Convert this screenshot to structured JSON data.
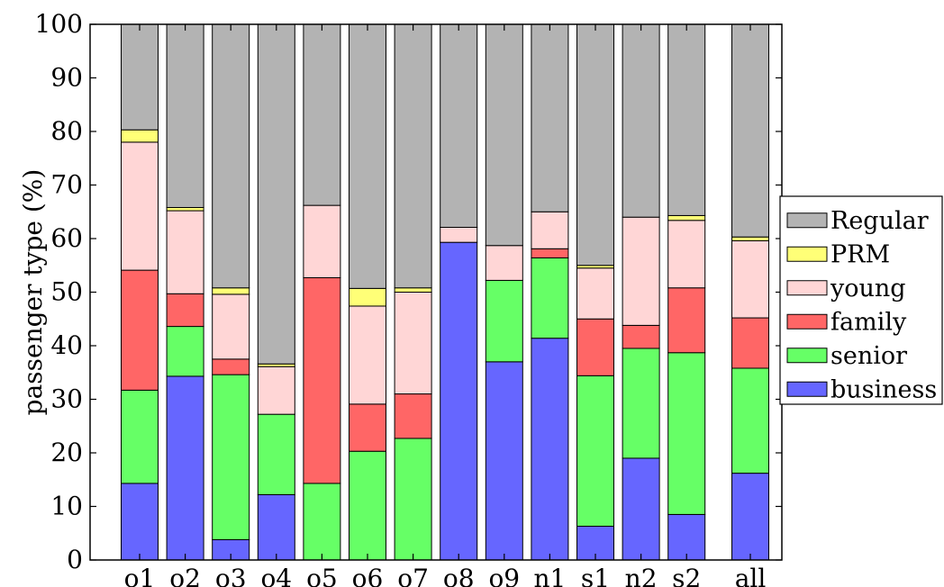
{
  "chart_data": {
    "type": "bar",
    "stacked": true,
    "title": "",
    "xlabel": "",
    "ylabel": "passenger type (%)",
    "ylim": [
      0,
      100
    ],
    "yticks": [
      0,
      10,
      20,
      30,
      40,
      50,
      60,
      70,
      80,
      90,
      100
    ],
    "grid": false,
    "legend_position": "right",
    "categories": [
      "o1",
      "o2",
      "o3",
      "o4",
      "o5",
      "o6",
      "o7",
      "o8",
      "o9",
      "n1",
      "s1",
      "n2",
      "s2",
      "all"
    ],
    "series": [
      {
        "name": "business",
        "color": "#6666ff",
        "values": [
          14.3,
          34.3,
          3.8,
          12.2,
          0,
          0,
          0,
          59.3,
          37.0,
          41.4,
          6.3,
          19.0,
          8.5,
          16.2
        ]
      },
      {
        "name": "senior",
        "color": "#66ff66",
        "values": [
          17.4,
          9.3,
          30.8,
          15.0,
          14.3,
          20.3,
          22.7,
          0,
          15.2,
          15.0,
          28.1,
          20.5,
          30.2,
          19.6
        ]
      },
      {
        "name": "family",
        "color": "#ff6666",
        "values": [
          22.4,
          6.1,
          2.9,
          0,
          38.4,
          8.8,
          8.3,
          0,
          0,
          1.7,
          10.6,
          4.3,
          12.1,
          9.4
        ]
      },
      {
        "name": "young",
        "color": "#ffd6d6",
        "values": [
          23.9,
          15.5,
          12.1,
          8.9,
          13.5,
          18.3,
          19.0,
          2.8,
          6.5,
          6.9,
          9.5,
          20.2,
          12.6,
          14.4
        ]
      },
      {
        "name": "PRM",
        "color": "#ffff77",
        "values": [
          2.3,
          0.6,
          1.2,
          0.5,
          0,
          3.3,
          0.8,
          0,
          0,
          0,
          0.5,
          0,
          0.9,
          0.7
        ]
      },
      {
        "name": "Regular",
        "color": "#b3b3b3",
        "values": [
          19.7,
          34.2,
          49.2,
          63.4,
          33.8,
          49.3,
          49.2,
          37.9,
          41.3,
          35.0,
          45.0,
          36.0,
          35.7,
          39.7
        ]
      }
    ],
    "legend_order": [
      "Regular",
      "PRM",
      "young",
      "family",
      "senior",
      "business"
    ]
  }
}
